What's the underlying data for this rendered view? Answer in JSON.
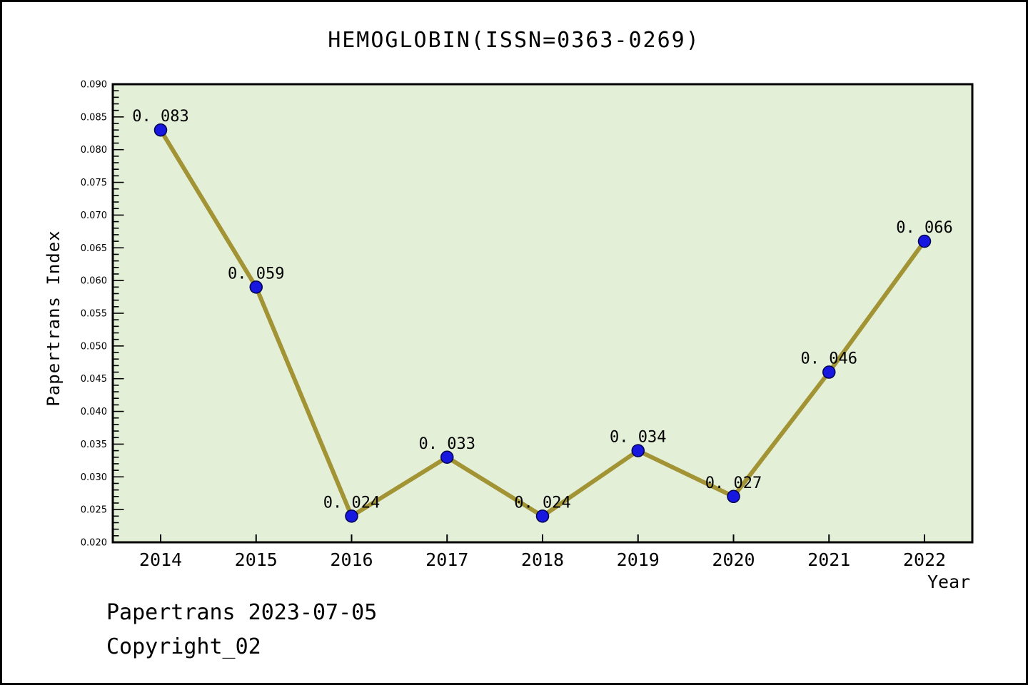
{
  "title": "HEMOGLOBIN(ISSN=0363-0269)",
  "footer": {
    "line1": "Papertrans 2023-07-05",
    "line2": "Copyright_02"
  },
  "chart_data": {
    "type": "line",
    "title": "HEMOGLOBIN(ISSN=0363-0269)",
    "xlabel": "Year",
    "ylabel": "Papertrans Index",
    "categories": [
      2014,
      2015,
      2016,
      2017,
      2018,
      2019,
      2020,
      2021,
      2022
    ],
    "values": [
      0.083,
      0.059,
      0.024,
      0.033,
      0.024,
      0.034,
      0.027,
      0.046,
      0.066
    ],
    "point_labels": [
      "0. 083",
      "0. 059",
      "0. 024",
      "0. 033",
      "0. 024",
      "0. 034",
      "0. 027",
      "0. 046",
      "0. 066"
    ],
    "ylim": [
      0.02,
      0.09
    ],
    "ytick_step": 0.005,
    "ytick_minor_step": 0.001,
    "grid": false,
    "legend_position": "none",
    "colors": {
      "line": "#a29434",
      "marker_fill": "#1717e0",
      "marker_edge": "#000050",
      "plot_background": "#e3efd6",
      "axis": "#000000",
      "text": "#000000"
    }
  }
}
